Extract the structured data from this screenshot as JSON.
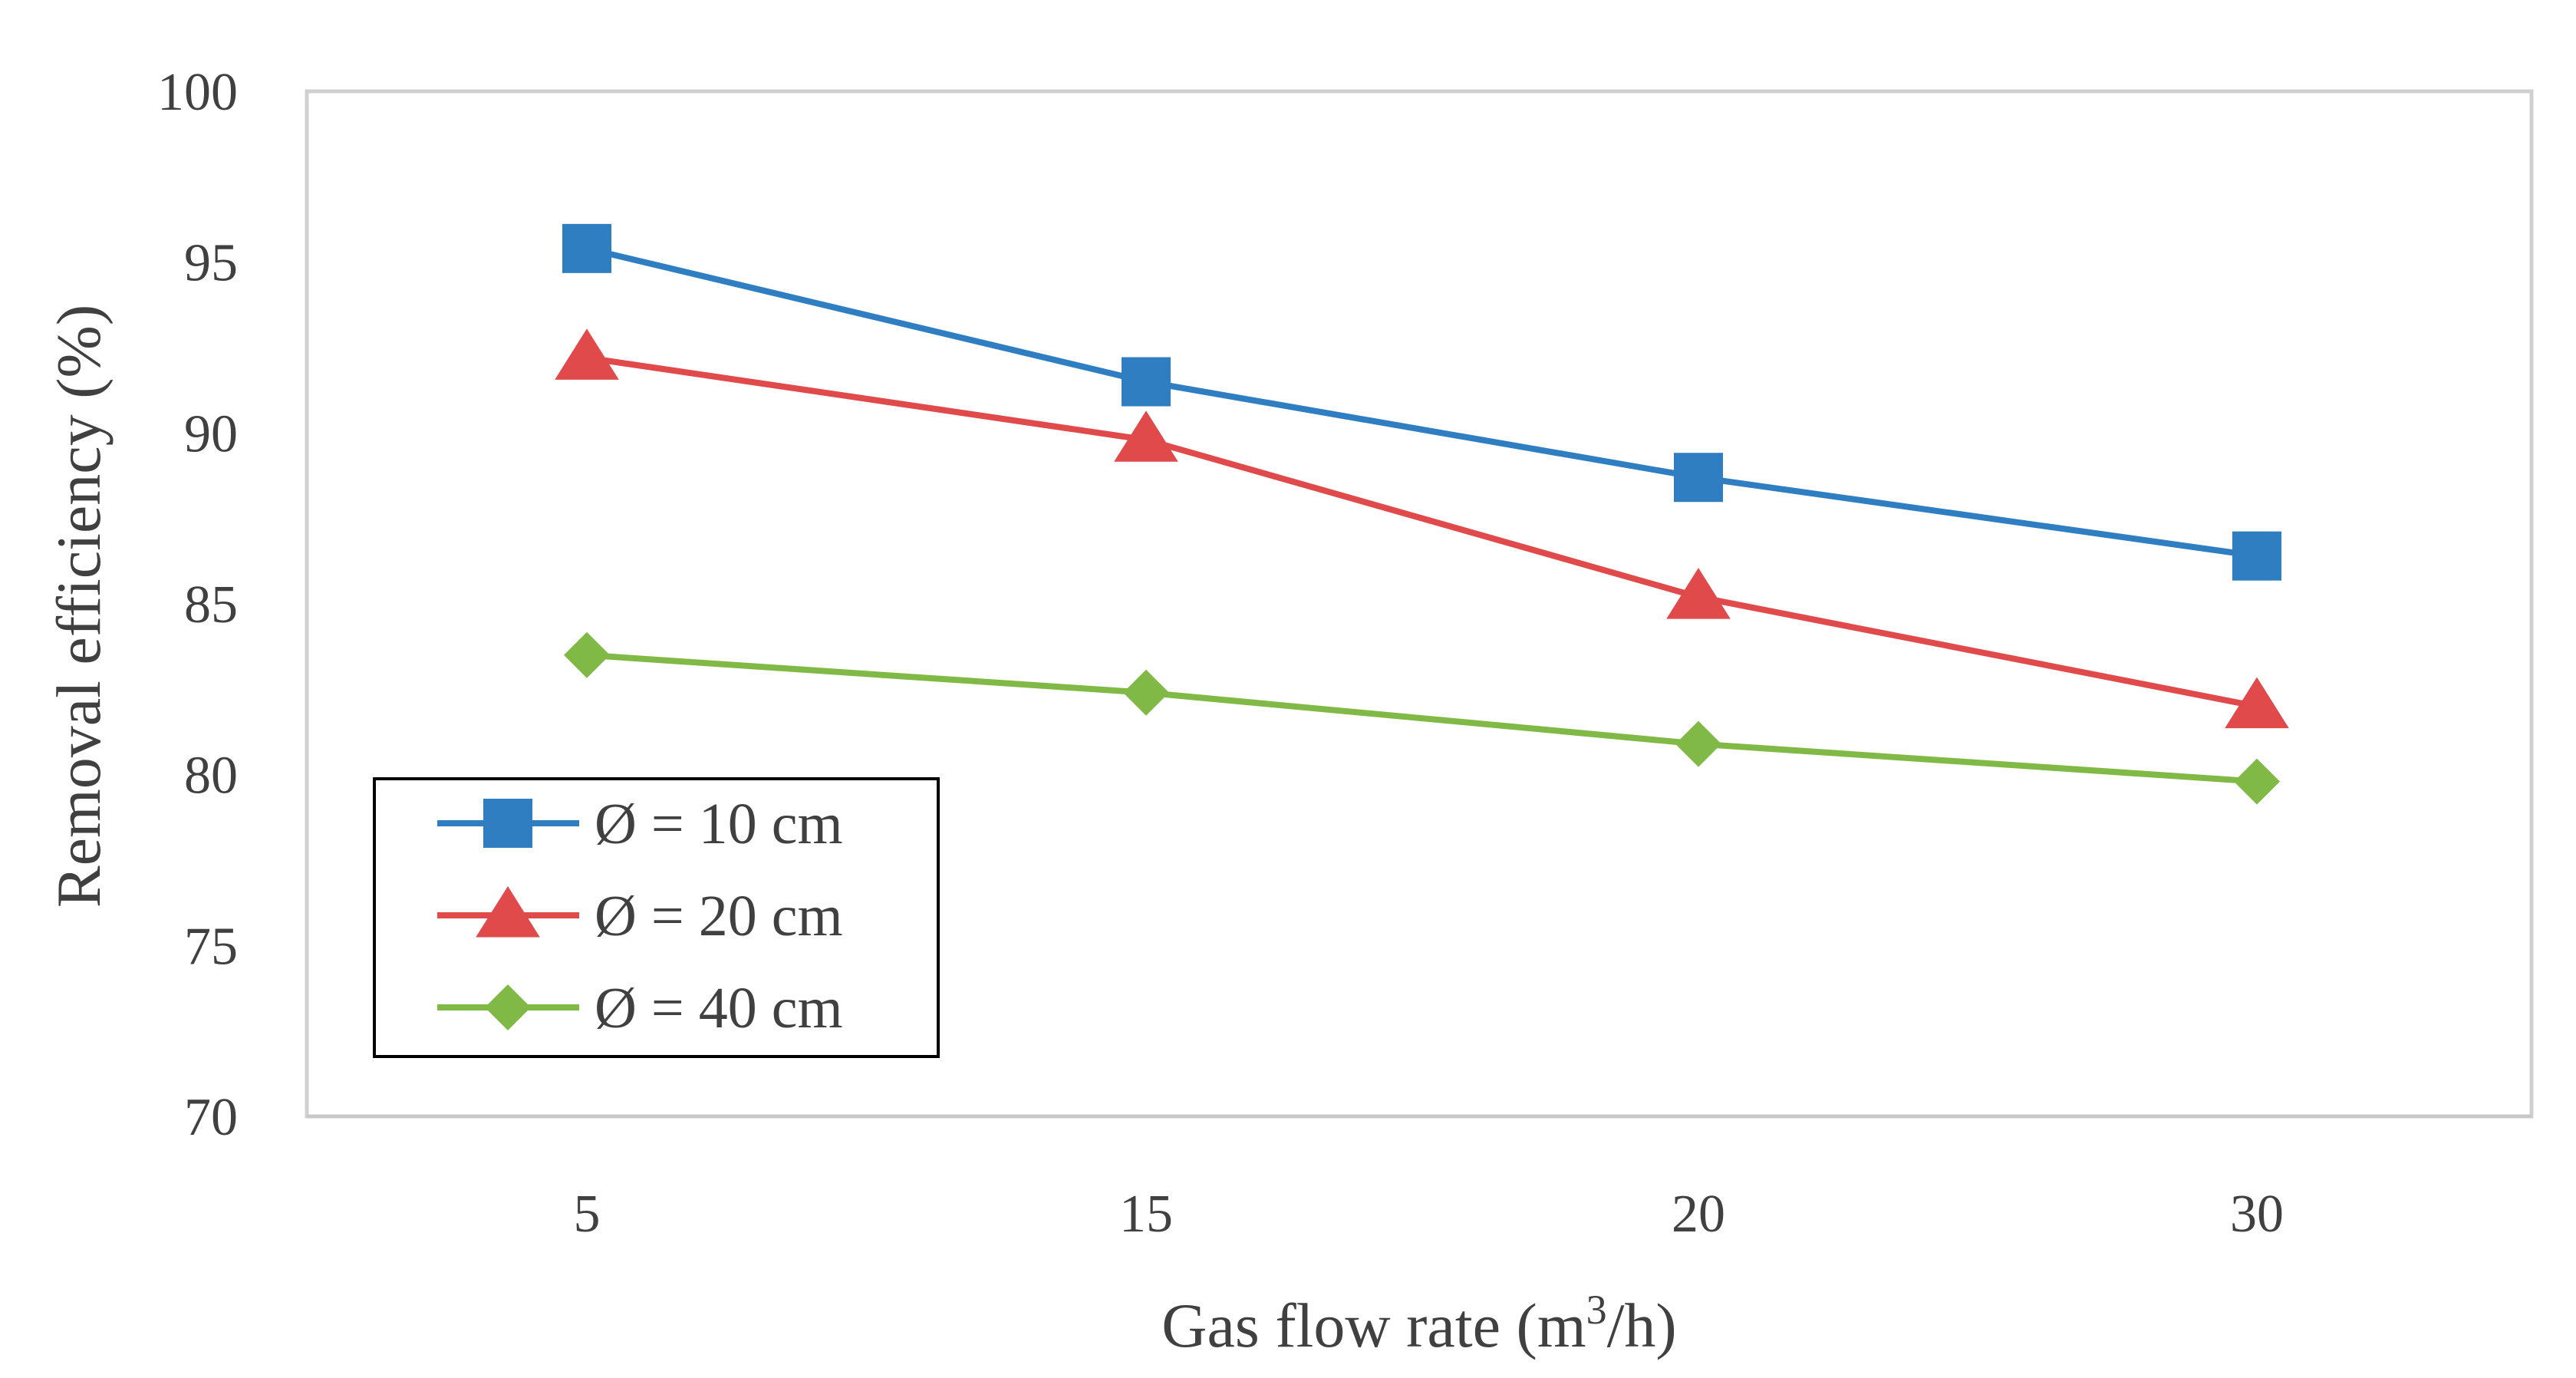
{
  "chart_data": {
    "type": "line",
    "title": "",
    "xlabel_prefix": "Gas flow rate (m",
    "xlabel_sup": "3",
    "xlabel_suffix": "/h)",
    "ylabel": "Removal efficiency (%)",
    "categories": [
      "5",
      "15",
      "20",
      "30"
    ],
    "ylim": [
      70,
      100
    ],
    "yticks": [
      "70",
      "75",
      "80",
      "85",
      "90",
      "95",
      "100"
    ],
    "grid": false,
    "legend_position": "lower-left",
    "series": [
      {
        "name": "Ø = 10 cm",
        "marker": "square",
        "color": "#2E7EC1",
        "values": [
          95.4,
          91.5,
          88.7,
          86.4
        ]
      },
      {
        "name": "Ø = 20 cm",
        "marker": "triangle",
        "color": "#E04A4A",
        "values": [
          92.2,
          89.8,
          85.2,
          82.0
        ]
      },
      {
        "name": "Ø = 40 cm",
        "marker": "diamond",
        "color": "#80B946",
        "values": [
          83.5,
          82.4,
          80.9,
          79.8
        ]
      }
    ]
  }
}
